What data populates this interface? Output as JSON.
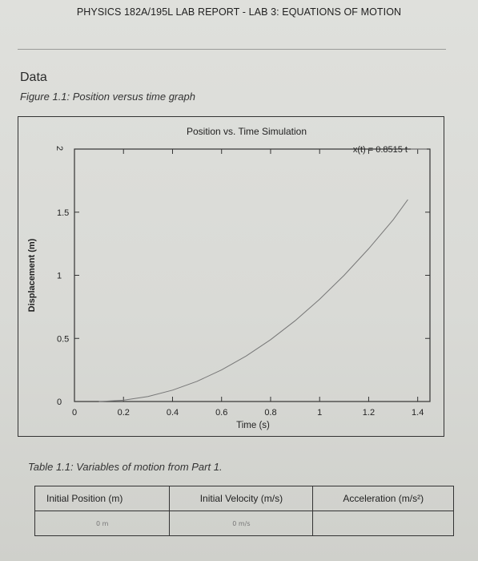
{
  "header": {
    "title": "PHYSICS 182A/195L LAB REPORT -  LAB 3: EQUATIONS OF MOTION"
  },
  "section": {
    "title": "Data"
  },
  "figure": {
    "caption": "Figure 1.1: Position versus time graph"
  },
  "chart_data": {
    "type": "line",
    "title": "Position vs. Time Simulation",
    "xlabel": "Time (s)",
    "ylabel": "Displacement (m)",
    "xlim": [
      -0.0,
      1.45
    ],
    "ylim": [
      0,
      2
    ],
    "xticks": [
      0,
      0.2,
      0.4,
      0.6,
      0.8,
      1,
      1.2,
      1.4
    ],
    "xtick_labels": [
      "0",
      "0.2",
      "0.4",
      "0.6",
      "0.8",
      "1",
      "1.2",
      "1.4"
    ],
    "yticks": [
      0,
      0.5,
      1,
      1.5,
      2
    ],
    "ytick_labels": [
      "0",
      "0.5",
      "1",
      "1.5",
      "2"
    ],
    "legend_position": "top-right",
    "series": [
      {
        "name": "x(t) = 0.8515 t",
        "color": "#777777",
        "x": [
          0.1,
          0.2,
          0.3,
          0.4,
          0.5,
          0.6,
          0.7,
          0.8,
          0.9,
          1.0,
          1.1,
          1.2,
          1.3,
          1.36
        ],
        "y": [
          0.0,
          0.01,
          0.04,
          0.09,
          0.16,
          0.25,
          0.36,
          0.49,
          0.64,
          0.81,
          1.0,
          1.21,
          1.44,
          1.6
        ]
      }
    ]
  },
  "table": {
    "caption": "Table 1.1: Variables of motion from Part 1.",
    "headers": [
      "Initial Position (m)",
      "Initial Velocity (m/s)",
      "Acceleration (m/s²)"
    ],
    "values": [
      "0 m",
      "0 m/s",
      ""
    ]
  }
}
